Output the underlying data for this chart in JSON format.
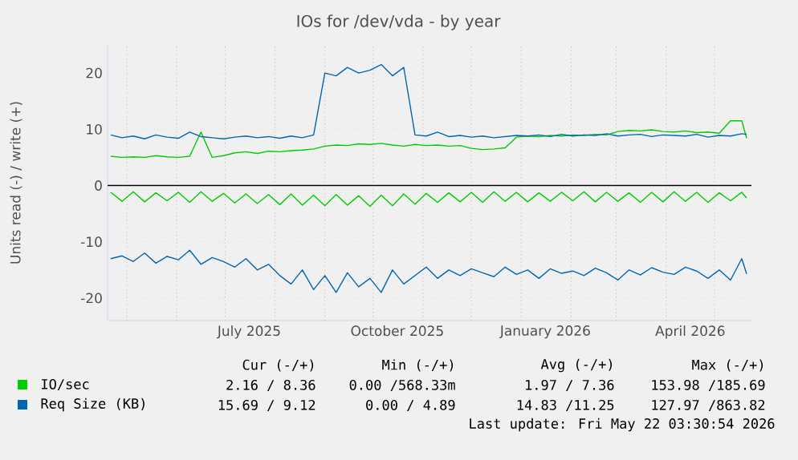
{
  "chart_data": {
    "type": "line",
    "title": "IOs for /dev/vda - by year",
    "ylabel": "Units read (-) / write (+)",
    "x": [
      "2025-04-21",
      "2025-04-28",
      "2025-05-05",
      "2025-05-12",
      "2025-05-19",
      "2025-05-26",
      "2025-06-02",
      "2025-06-09",
      "2025-06-16",
      "2025-06-23",
      "2025-06-30",
      "2025-07-07",
      "2025-07-14",
      "2025-07-21",
      "2025-07-28",
      "2025-08-04",
      "2025-08-11",
      "2025-08-18",
      "2025-08-25",
      "2025-09-01",
      "2025-09-08",
      "2025-09-15",
      "2025-09-22",
      "2025-09-29",
      "2025-10-06",
      "2025-10-13",
      "2025-10-20",
      "2025-10-27",
      "2025-11-03",
      "2025-11-10",
      "2025-11-17",
      "2025-11-24",
      "2025-12-01",
      "2025-12-08",
      "2025-12-15",
      "2025-12-22",
      "2025-12-29",
      "2026-01-05",
      "2026-01-12",
      "2026-01-19",
      "2026-01-26",
      "2026-02-02",
      "2026-02-09",
      "2026-02-16",
      "2026-02-23",
      "2026-03-02",
      "2026-03-09",
      "2026-03-16",
      "2026-03-23",
      "2026-03-30",
      "2026-04-06",
      "2026-04-13",
      "2026-04-20",
      "2026-04-27",
      "2026-05-04",
      "2026-05-11",
      "2026-05-18",
      "2026-05-21"
    ],
    "series": [
      {
        "name": "IO/sec",
        "color": "#00cc00",
        "values": [
          5.2,
          5,
          5.1,
          5,
          5.3,
          5.1,
          5,
          5.2,
          9.5,
          5,
          5.3,
          5.8,
          6,
          5.7,
          6.1,
          6,
          6.2,
          6.3,
          6.5,
          7,
          7.2,
          7.1,
          7.4,
          7.3,
          7.5,
          7.2,
          7,
          7.3,
          7.1,
          7.2,
          7,
          7.1,
          6.6,
          6.4,
          6.5,
          6.7,
          8.6,
          8.8,
          8.7,
          8.9,
          8.8,
          9,
          8.9,
          9.1,
          9,
          9.6,
          9.8,
          9.7,
          9.9,
          9.6,
          9.5,
          9.7,
          9.4,
          9.5,
          9.3,
          11.5,
          11.5,
          8.4
        ]
      },
      {
        "color": "#00cc00",
        "values": [
          -1.2,
          -2.8,
          -1.1,
          -2.9,
          -1.3,
          -2.7,
          -1.2,
          -3,
          -1.1,
          -2.8,
          -1.4,
          -3.1,
          -1.5,
          -3.2,
          -1.6,
          -3.4,
          -1.5,
          -3.5,
          -1.7,
          -3.6,
          -1.6,
          -3.5,
          -1.8,
          -3.7,
          -1.7,
          -3.6,
          -1.5,
          -3.3,
          -1.4,
          -3,
          -1.3,
          -2.9,
          -1.2,
          -3,
          -1.1,
          -2.8,
          -1.2,
          -2.9,
          -1.3,
          -2.8,
          -1.2,
          -2.7,
          -1.1,
          -2.9,
          -1.2,
          -2.8,
          -1.3,
          -3,
          -1.2,
          -2.9,
          -1.1,
          -2.8,
          -1.2,
          -3,
          -1.3,
          -2.7,
          -1.2,
          -2.2
        ]
      },
      {
        "name": "Req Size (KB)",
        "color": "#0066b3",
        "values": [
          9,
          8.5,
          8.8,
          8.3,
          9,
          8.6,
          8.4,
          9.5,
          8.7,
          8.5,
          8.3,
          8.6,
          8.8,
          8.5,
          8.7,
          8.4,
          8.8,
          8.5,
          9,
          20,
          19.5,
          21,
          20,
          20.5,
          21.5,
          19.5,
          21,
          9,
          8.8,
          9.5,
          8.7,
          8.9,
          8.6,
          8.8,
          8.5,
          8.7,
          8.9,
          8.8,
          9,
          8.7,
          9.1,
          8.8,
          9,
          8.9,
          9.2,
          8.8,
          9,
          9.1,
          8.7,
          9,
          8.9,
          8.8,
          9.1,
          8.6,
          8.9,
          8.8,
          9.2,
          9.1
        ]
      },
      {
        "color": "#0066b3",
        "values": [
          -13,
          -12.5,
          -13.5,
          -12,
          -13.8,
          -12.6,
          -13.2,
          -11.5,
          -14,
          -12.8,
          -13.5,
          -14.5,
          -13,
          -15,
          -14,
          -16,
          -17.5,
          -15,
          -18.5,
          -16,
          -19,
          -15.5,
          -18,
          -16.5,
          -19,
          -15,
          -17.5,
          -16,
          -14.5,
          -16.5,
          -15,
          -16,
          -14.8,
          -15.5,
          -16.2,
          -14.5,
          -15.8,
          -15,
          -16.5,
          -14.8,
          -15.6,
          -15.2,
          -16,
          -14.7,
          -15.5,
          -16.8,
          -15,
          -15.9,
          -14.6,
          -15.4,
          -15.8,
          -14.5,
          -15.2,
          -16.5,
          -15,
          -16.8,
          -13,
          -15.7
        ]
      }
    ],
    "xlim": [
      "2025-04-19",
      "2026-05-24"
    ],
    "xticks": [
      {
        "value": "2025-07-16",
        "label": "July 2025"
      },
      {
        "value": "2025-10-16",
        "label": "October 2025"
      },
      {
        "value": "2026-01-16",
        "label": "January 2026"
      },
      {
        "value": "2026-04-16",
        "label": "April 2026"
      },
      {
        "value": "2025-05-01",
        "label": null
      },
      {
        "value": "2025-06-01",
        "label": null
      },
      {
        "value": "2025-07-01",
        "label": null
      },
      {
        "value": "2025-08-01",
        "label": null
      },
      {
        "value": "2025-09-01",
        "label": null
      },
      {
        "value": "2025-10-01",
        "label": null
      },
      {
        "value": "2025-11-01",
        "label": null
      },
      {
        "value": "2025-12-01",
        "label": null
      },
      {
        "value": "2026-01-01",
        "label": null
      },
      {
        "value": "2026-02-01",
        "label": null
      },
      {
        "value": "2026-03-01",
        "label": null
      },
      {
        "value": "2026-04-01",
        "label": null
      },
      {
        "value": "2026-05-01",
        "label": null
      }
    ],
    "ylim": [
      -24,
      25
    ],
    "yticks": [
      -20,
      -10,
      0,
      10,
      20
    ],
    "ref_lines": [
      {
        "axis": "y",
        "value": 0,
        "color": "#000000"
      }
    ],
    "grid": true,
    "legend": "bottom",
    "line_style": "solid",
    "annotations": [
      "Cur (-/+)",
      "Min (-/+)",
      "Avg (-/+)",
      "Max (-/+)",
      "2.16 / 8.36",
      "0.00 /568.33m",
      "1.97 / 7.36",
      "153.98 /185.69",
      "15.69 / 9.12",
      "0.00 / 4.89",
      "14.83 /11.25",
      "127.97 /863.82",
      "Last update: Fri May 22 03:30:54 2026"
    ]
  }
}
